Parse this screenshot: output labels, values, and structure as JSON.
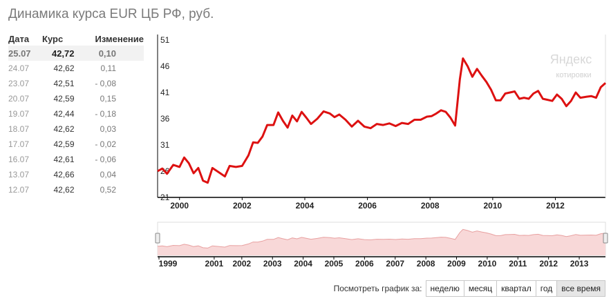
{
  "title": "Динамика курса EUR ЦБ РФ, руб.",
  "table": {
    "headers": {
      "date": "Дата",
      "rate": "Курс",
      "change": "Изменение"
    },
    "rows": [
      {
        "date": "25.07",
        "rate": "42,72",
        "change": "0,10"
      },
      {
        "date": "24.07",
        "rate": "42,62",
        "change": "0,11"
      },
      {
        "date": "23.07",
        "rate": "42,51",
        "change": "- 0,08"
      },
      {
        "date": "20.07",
        "rate": "42,59",
        "change": "0,15"
      },
      {
        "date": "19.07",
        "rate": "42,44",
        "change": "- 0,18"
      },
      {
        "date": "18.07",
        "rate": "42,62",
        "change": "0,03"
      },
      {
        "date": "17.07",
        "rate": "42,59",
        "change": "- 0,02"
      },
      {
        "date": "16.07",
        "rate": "42,61",
        "change": "- 0,06"
      },
      {
        "date": "13.07",
        "rate": "42,66",
        "change": "0,04"
      },
      {
        "date": "12.07",
        "rate": "42,62",
        "change": "0,52"
      }
    ]
  },
  "watermark": {
    "brand": "Яндекс",
    "sub": "котировки"
  },
  "colors": {
    "line": "#dd1111",
    "overview_fill": "#f8d8d8",
    "overview_line": "#e8a0a0",
    "axis": "#000000"
  },
  "chart_data": {
    "type": "line",
    "title": "",
    "xlabel": "",
    "ylabel": "",
    "y_ticks": [
      21,
      26,
      31,
      36,
      41,
      46,
      51
    ],
    "ylim": [
      21,
      51
    ],
    "xlim": [
      1999.3,
      2013.6
    ],
    "x_ticks": [
      "2000",
      "2002",
      "2004",
      "2006",
      "2008",
      "2010",
      "2012"
    ],
    "grid": false,
    "series": [
      {
        "values_x": [
          1999.3,
          1999.45,
          1999.6,
          1999.8,
          2000.0,
          2000.15,
          2000.3,
          2000.45,
          2000.6,
          2000.75,
          2000.9,
          2001.05,
          2001.25,
          2001.45,
          2001.6,
          2001.8,
          2002.0,
          2002.2,
          2002.35,
          2002.5,
          2002.65,
          2002.8,
          2003.0,
          2003.15,
          2003.3,
          2003.45,
          2003.6,
          2003.75,
          2003.9,
          2004.05,
          2004.2,
          2004.4,
          2004.6,
          2004.8,
          2004.95,
          2005.1,
          2005.3,
          2005.5,
          2005.7,
          2005.9,
          2006.1,
          2006.3,
          2006.5,
          2006.7,
          2006.9,
          2007.1,
          2007.3,
          2007.5,
          2007.7,
          2007.9,
          2008.05,
          2008.2,
          2008.35,
          2008.5,
          2008.65,
          2008.8,
          2008.95,
          2009.05,
          2009.2,
          2009.35,
          2009.5,
          2009.65,
          2009.8,
          2009.95,
          2010.1,
          2010.25,
          2010.4,
          2010.55,
          2010.7,
          2010.85,
          2011.0,
          2011.15,
          2011.3,
          2011.45,
          2011.6,
          2011.75,
          2011.9,
          2012.05,
          2012.2,
          2012.35,
          2012.5,
          2012.65,
          2012.8,
          2013.0,
          2013.15,
          2013.3,
          2013.45,
          2013.6
        ],
        "values": [
          26.0,
          26.5,
          25.5,
          27.2,
          26.8,
          28.6,
          27.5,
          25.6,
          26.6,
          24.2,
          23.8,
          26.6,
          25.8,
          25.0,
          27.0,
          26.8,
          27.0,
          29.0,
          31.5,
          31.4,
          32.6,
          34.8,
          34.8,
          37.2,
          35.6,
          34.3,
          36.6,
          35.5,
          37.3,
          36.2,
          35.0,
          36.0,
          37.4,
          37.0,
          36.3,
          36.8,
          35.8,
          34.5,
          35.6,
          34.5,
          34.2,
          35.0,
          34.8,
          35.1,
          34.6,
          35.2,
          35.0,
          35.8,
          35.8,
          36.4,
          36.5,
          37.0,
          37.6,
          37.3,
          36.2,
          34.7,
          43.5,
          47.5,
          46.0,
          44.0,
          45.5,
          44.2,
          43.0,
          41.5,
          39.5,
          39.5,
          40.8,
          41.0,
          41.2,
          39.8,
          40.0,
          39.8,
          40.8,
          41.3,
          39.8,
          39.6,
          39.4,
          40.6,
          39.8,
          38.4,
          39.4,
          41.0,
          40.0,
          40.2,
          40.3,
          40.0,
          42.0,
          42.8
        ]
      }
    ],
    "overview": {
      "x_ticks": [
        "1999",
        "2001",
        "2002",
        "2003",
        "2004",
        "2005",
        "2006",
        "2007",
        "2008",
        "2009",
        "2010",
        "2011",
        "2012",
        "2013"
      ]
    }
  },
  "period_selector": {
    "label": "Посмотреть график за:",
    "options": [
      "неделю",
      "месяц",
      "квартал",
      "год",
      "все время"
    ],
    "active": "все время"
  }
}
